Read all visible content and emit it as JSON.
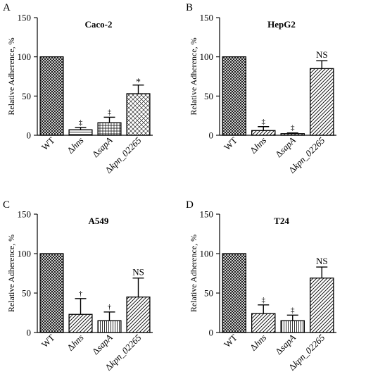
{
  "chart_data": [
    {
      "type": "bar",
      "panel_label": "A",
      "title": "Caco-2",
      "ylabel": "Relative Adherence, %",
      "ylim": [
        0,
        150
      ],
      "yticks": [
        "0",
        "50",
        "100",
        "150"
      ],
      "categories": [
        "WT",
        "Δhns",
        "ΔsapA",
        "Δkpn_02265"
      ],
      "values": [
        100,
        7,
        16,
        53
      ],
      "errors": [
        0,
        3,
        7,
        11
      ],
      "significance": [
        "",
        "‡",
        "‡",
        "*"
      ],
      "patterns": [
        "crosshatch",
        "horizontal",
        "grid",
        "diagonal-cross"
      ]
    },
    {
      "type": "bar",
      "panel_label": "B",
      "title": "HepG2",
      "ylabel": "Relative Adherence, %",
      "ylim": [
        0,
        150
      ],
      "yticks": [
        "0",
        "50",
        "100",
        "150"
      ],
      "categories": [
        "WT",
        "Δhns",
        "ΔsapA",
        "Δkpn_02265"
      ],
      "values": [
        100,
        6,
        2,
        85
      ],
      "errors": [
        0,
        5,
        1,
        10
      ],
      "significance": [
        "",
        "‡",
        "‡",
        "NS"
      ],
      "patterns": [
        "crosshatch",
        "diagonal",
        "diagonal",
        "diagonal"
      ]
    },
    {
      "type": "bar",
      "panel_label": "C",
      "title": "A549",
      "ylabel": "Relative Adherence, %",
      "ylim": [
        0,
        150
      ],
      "yticks": [
        "0",
        "50",
        "100",
        "150"
      ],
      "categories": [
        "WT",
        "Δhns",
        "ΔsapA",
        "Δkpn_02265"
      ],
      "values": [
        100,
        23,
        15,
        45
      ],
      "errors": [
        0,
        20,
        11,
        24
      ],
      "significance": [
        "",
        "†",
        "†",
        "NS"
      ],
      "patterns": [
        "crosshatch",
        "diagonal",
        "vertical",
        "diagonal"
      ]
    },
    {
      "type": "bar",
      "panel_label": "D",
      "title": "T24",
      "ylabel": "Relative Adherence, %",
      "ylim": [
        0,
        150
      ],
      "yticks": [
        "0",
        "50",
        "100",
        "150"
      ],
      "categories": [
        "WT",
        "Δhns",
        "ΔsapA",
        "Δkpn_02265"
      ],
      "values": [
        100,
        24,
        15,
        69
      ],
      "errors": [
        0,
        11,
        7,
        14
      ],
      "significance": [
        "",
        "‡",
        "‡",
        "NS"
      ],
      "patterns": [
        "crosshatch",
        "diagonal",
        "vertical",
        "diagonal"
      ]
    }
  ]
}
